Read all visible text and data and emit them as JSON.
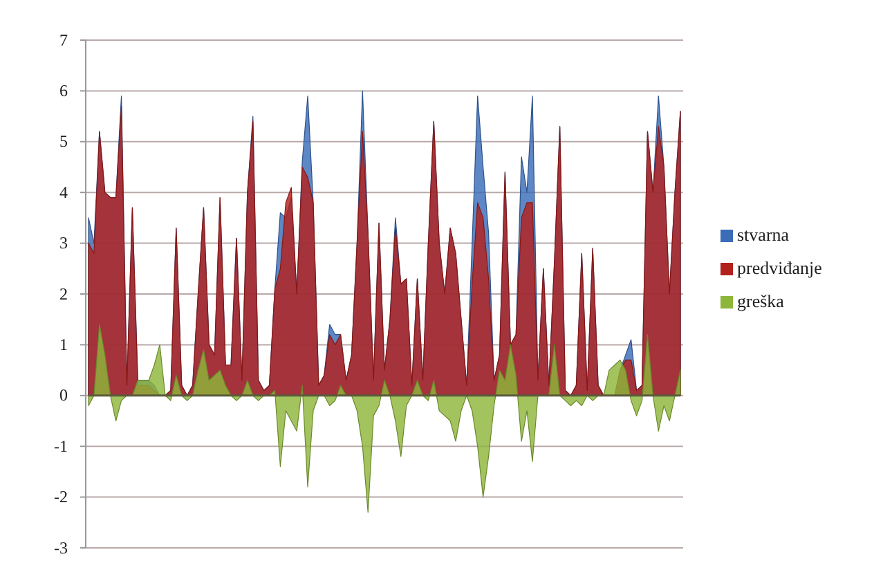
{
  "chart_data": {
    "type": "area",
    "categories": [
      null,
      null,
      null,
      null,
      null,
      null,
      null,
      null,
      null,
      null,
      null,
      null,
      null,
      null,
      null,
      null,
      null,
      null,
      null,
      null,
      null,
      null,
      null,
      null,
      null,
      null,
      null,
      null,
      null,
      null,
      null,
      null,
      null,
      null,
      null,
      null,
      null,
      null,
      null,
      null,
      null,
      null,
      null,
      null,
      null,
      null,
      null,
      null,
      null,
      null,
      null,
      null,
      null,
      null,
      null,
      null,
      null,
      null,
      null,
      null,
      null,
      null,
      null,
      null,
      null,
      null,
      null,
      null,
      null,
      null,
      null,
      null,
      null,
      null,
      null,
      null,
      null,
      null,
      null,
      null,
      null,
      null,
      null,
      null,
      null,
      null,
      null,
      null,
      null,
      null,
      null,
      null,
      null,
      null,
      null,
      null,
      null,
      null,
      null,
      null,
      null,
      null,
      null,
      null,
      null,
      null,
      null,
      null,
      null
    ],
    "series": [
      {
        "name": "stvarna",
        "color": "#3a6cb8",
        "values": [
          3.5,
          3.0,
          5.2,
          4.0,
          3.9,
          3.9,
          5.9,
          0.2,
          3.7,
          0.3,
          0.3,
          0.3,
          0.2,
          0,
          0,
          0.1,
          3.3,
          0.2,
          0,
          0.2,
          2.0,
          3.7,
          1.0,
          0.8,
          3.9,
          0.6,
          0.6,
          3.1,
          0.3,
          4.0,
          5.5,
          0.3,
          0.1,
          0.2,
          2.1,
          3.6,
          3.5,
          3.9,
          2.0,
          4.6,
          5.9,
          3.8,
          0.2,
          0.4,
          1.4,
          1.2,
          1.2,
          0.3,
          0.8,
          3.0,
          6.0,
          3.2,
          0.3,
          3.4,
          0.5,
          1.5,
          3.5,
          2.2,
          2.3,
          0.2,
          2.3,
          0.3,
          3.0,
          5.4,
          3.0,
          2.0,
          3.3,
          2.8,
          1.5,
          0.2,
          3.0,
          5.9,
          4.5,
          3.2,
          0.3,
          0.8,
          4.4,
          1.0,
          1.2,
          4.7,
          4.0,
          5.9,
          0.3,
          2.5,
          0.2,
          2.6,
          5.3,
          0.1,
          0,
          0.2,
          2.8,
          0.1,
          2.9,
          0.2,
          0,
          0,
          0,
          0.5,
          0.8,
          1.1,
          0.1,
          0.2,
          5.2,
          4.0,
          5.9,
          4.5,
          2.0,
          4.0,
          5.6
        ]
      },
      {
        "name": "predviđanje",
        "color": "#b3211c",
        "values": [
          3.0,
          2.8,
          5.2,
          4.0,
          3.9,
          3.9,
          5.7,
          0.2,
          3.7,
          0.2,
          0.2,
          0.2,
          0.1,
          0,
          0,
          0.1,
          3.3,
          0.2,
          0,
          0.2,
          2.0,
          3.7,
          1.0,
          0.8,
          3.9,
          0.6,
          0.6,
          3.1,
          0.3,
          4.0,
          5.4,
          0.3,
          0.1,
          0.2,
          2.1,
          2.5,
          3.8,
          4.1,
          2.0,
          4.5,
          4.3,
          3.8,
          0.2,
          0.4,
          1.2,
          1.0,
          1.2,
          0.3,
          0.8,
          3.0,
          5.2,
          3.2,
          0.3,
          3.4,
          0.5,
          1.5,
          3.3,
          2.2,
          2.3,
          0.2,
          2.3,
          0.3,
          3.0,
          5.4,
          3.0,
          2.0,
          3.3,
          2.8,
          1.5,
          0.2,
          2.2,
          3.8,
          3.5,
          2.3,
          0.3,
          0.8,
          4.4,
          1.0,
          1.2,
          3.5,
          3.8,
          3.8,
          0.3,
          2.5,
          0.2,
          2.6,
          5.3,
          0.1,
          0,
          0.2,
          2.8,
          0.1,
          2.9,
          0.2,
          0,
          0,
          0,
          0.5,
          0.7,
          0.7,
          0.1,
          0.2,
          5.2,
          4.0,
          5.3,
          4.5,
          2.0,
          4.0,
          5.6
        ]
      },
      {
        "name": "greška",
        "color": "#8db63a",
        "values": [
          -0.2,
          0,
          1.4,
          0.8,
          0,
          -0.5,
          -0.1,
          0,
          0,
          0.3,
          0.3,
          0.3,
          0.6,
          1.0,
          0,
          -0.1,
          0.4,
          0,
          -0.1,
          0,
          0.5,
          0.9,
          0.3,
          0.4,
          0.5,
          0.2,
          0,
          -0.1,
          0,
          0.3,
          0,
          -0.1,
          0,
          0,
          0.1,
          -1.4,
          -0.3,
          -0.5,
          -0.7,
          0.2,
          -1.8,
          -0.3,
          0,
          0,
          -0.2,
          -0.1,
          0.2,
          0,
          0,
          -0.3,
          -1.0,
          -2.3,
          -0.4,
          -0.2,
          0.3,
          0,
          -0.5,
          -1.2,
          -0.2,
          0,
          0.3,
          0,
          -0.1,
          0.3,
          -0.3,
          -0.4,
          -0.5,
          -0.9,
          -0.3,
          0,
          -0.3,
          -1.0,
          -2.0,
          -1.2,
          -0.2,
          0.5,
          0.3,
          1.0,
          0.4,
          -0.9,
          -0.3,
          -1.3,
          0,
          0,
          0,
          1.0,
          0,
          -0.1,
          -0.2,
          -0.1,
          -0.2,
          0,
          -0.1,
          0,
          0,
          0.5,
          0.6,
          0.7,
          0.5,
          -0.1,
          -0.4,
          -0.1,
          1.2,
          0,
          -0.7,
          -0.2,
          -0.5,
          0,
          0.5
        ]
      }
    ],
    "ylim": [
      -3,
      7
    ],
    "yticks": [
      -3,
      -2,
      -1,
      0,
      1,
      2,
      3,
      4,
      5,
      6,
      7
    ],
    "grid": "y",
    "legend": "right",
    "tick_labels": "y"
  }
}
